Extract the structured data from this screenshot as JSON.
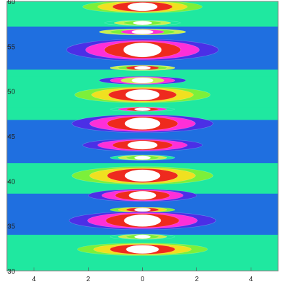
{
  "chart_data": {
    "type": "heatmap",
    "title": "",
    "xlabel": "",
    "ylabel": "",
    "xlim": [
      -5,
      5
    ],
    "ylim": [
      30,
      60
    ],
    "x_ticks": [
      {
        "value": -4,
        "label": "4"
      },
      {
        "value": -2,
        "label": "2"
      },
      {
        "value": 0,
        "label": "0"
      },
      {
        "value": 2,
        "label": "2"
      },
      {
        "value": 4,
        "label": "4"
      }
    ],
    "y_ticks": [
      {
        "value": 30,
        "label": "30"
      },
      {
        "value": 35,
        "label": "35"
      },
      {
        "value": 40,
        "label": "40"
      },
      {
        "value": 45,
        "label": "45"
      },
      {
        "value": 50,
        "label": "50"
      },
      {
        "value": 55,
        "label": "55"
      },
      {
        "value": 60,
        "label": "60"
      }
    ],
    "level_colors": [
      "#1f6fe0",
      "#1fe8a0",
      "#c8f050",
      "#7cf03a",
      "#f0e020",
      "#ee2a1e",
      "#ff2fd8",
      "#4b2fe6",
      "#ffffff"
    ],
    "bands": [
      {
        "y_from": 30.0,
        "y_to": 34.0,
        "level": 1
      },
      {
        "y_from": 34.0,
        "y_to": 38.6,
        "level": 0
      },
      {
        "y_from": 38.6,
        "y_to": 42.0,
        "level": 1
      },
      {
        "y_from": 42.0,
        "y_to": 46.8,
        "level": 0
      },
      {
        "y_from": 46.8,
        "y_to": 48.2,
        "level": 1
      },
      {
        "y_from": 48.2,
        "y_to": 51.6,
        "level": 1
      },
      {
        "y_from": 51.6,
        "y_to": 52.4,
        "level": 1
      },
      {
        "y_from": 52.4,
        "y_to": 57.2,
        "level": 0
      },
      {
        "y_from": 57.2,
        "y_to": 60.0,
        "level": 1
      }
    ],
    "lobes": [
      {
        "y": 59.4,
        "half_width": 2.2,
        "height": 1.4,
        "rings": [
          3,
          4,
          5,
          8
        ]
      },
      {
        "y": 57.6,
        "half_width": 1.4,
        "height": 0.6,
        "rings": [
          1,
          2,
          3,
          8
        ]
      },
      {
        "y": 56.6,
        "half_width": 1.6,
        "height": 0.7,
        "rings": [
          2,
          3,
          6,
          8
        ]
      },
      {
        "y": 54.6,
        "half_width": 2.8,
        "height": 2.4,
        "rings": [
          7,
          6,
          5,
          8
        ]
      },
      {
        "y": 52.6,
        "half_width": 1.2,
        "height": 0.6,
        "rings": [
          2,
          3,
          5,
          8
        ]
      },
      {
        "y": 51.2,
        "half_width": 1.6,
        "height": 0.9,
        "rings": [
          7,
          6,
          2,
          8
        ]
      },
      {
        "y": 49.6,
        "half_width": 2.5,
        "height": 1.8,
        "rings": [
          3,
          4,
          5,
          8
        ]
      },
      {
        "y": 48.0,
        "half_width": 1.2,
        "height": 0.5,
        "rings": [
          1,
          6,
          5,
          8
        ]
      },
      {
        "y": 46.4,
        "half_width": 2.6,
        "height": 2.0,
        "rings": [
          7,
          6,
          5,
          8
        ]
      },
      {
        "y": 44.0,
        "half_width": 2.2,
        "height": 1.4,
        "rings": [
          7,
          6,
          5,
          8
        ]
      },
      {
        "y": 42.6,
        "half_width": 1.2,
        "height": 0.6,
        "rings": [
          1,
          2,
          3,
          8
        ]
      },
      {
        "y": 40.6,
        "half_width": 2.6,
        "height": 2.0,
        "rings": [
          3,
          4,
          5,
          8
        ]
      },
      {
        "y": 38.4,
        "half_width": 2.0,
        "height": 1.4,
        "rings": [
          7,
          6,
          5,
          8
        ]
      },
      {
        "y": 36.8,
        "half_width": 1.2,
        "height": 0.6,
        "rings": [
          3,
          4,
          5,
          8
        ]
      },
      {
        "y": 35.6,
        "half_width": 2.7,
        "height": 2.0,
        "rings": [
          7,
          6,
          5,
          8
        ]
      },
      {
        "y": 33.8,
        "half_width": 1.2,
        "height": 0.6,
        "rings": [
          1,
          2,
          3,
          8
        ]
      },
      {
        "y": 32.4,
        "half_width": 2.4,
        "height": 1.4,
        "rings": [
          3,
          4,
          5,
          8
        ]
      }
    ],
    "grid": false,
    "legend": "none"
  }
}
